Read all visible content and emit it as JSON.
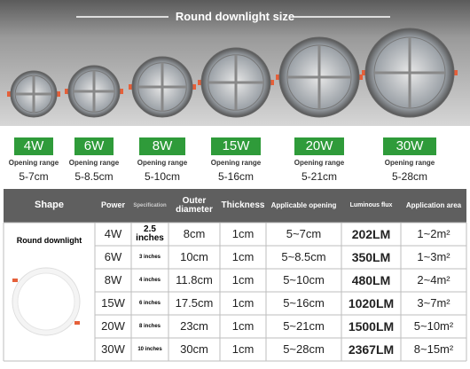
{
  "header": {
    "title": "Round downlight size"
  },
  "products": [
    {
      "power": "4W",
      "label": "Opening range",
      "range": "5-7cm"
    },
    {
      "power": "6W",
      "label": "Opening range",
      "range": "5-8.5cm"
    },
    {
      "power": "8W",
      "label": "Opening range",
      "range": "5-10cm"
    },
    {
      "power": "15W",
      "label": "Opening range",
      "range": "5-16cm"
    },
    {
      "power": "20W",
      "label": "Opening range",
      "range": "5-21cm"
    },
    {
      "power": "30W",
      "label": "Opening range",
      "range": "5-28cm"
    }
  ],
  "table": {
    "columns": [
      "Shape",
      "Power",
      "Specification",
      "Outer diameter",
      "Thickness",
      "Applicable opening",
      "Luminous flux",
      "Application area"
    ],
    "shape": "Round downlight",
    "rows": [
      [
        "4W",
        "2.5 inches",
        "8cm",
        "1cm",
        "5~7cm",
        "202LM",
        "1~2m²"
      ],
      [
        "6W",
        "3 inches",
        "10cm",
        "1cm",
        "5~8.5cm",
        "350LM",
        "1~3m²"
      ],
      [
        "8W",
        "4 inches",
        "11.8cm",
        "1cm",
        "5~10cm",
        "480LM",
        "2~4m²"
      ],
      [
        "15W",
        "6 inches",
        "17.5cm",
        "1cm",
        "5~16cm",
        "1020LM",
        "3~7m²"
      ],
      [
        "20W",
        "8 inches",
        "23cm",
        "1cm",
        "5~21cm",
        "1500LM",
        "5~10m²"
      ],
      [
        "30W",
        "10 inches",
        "30cm",
        "1cm",
        "5~28cm",
        "2367LM",
        "8~15m²"
      ]
    ]
  }
}
